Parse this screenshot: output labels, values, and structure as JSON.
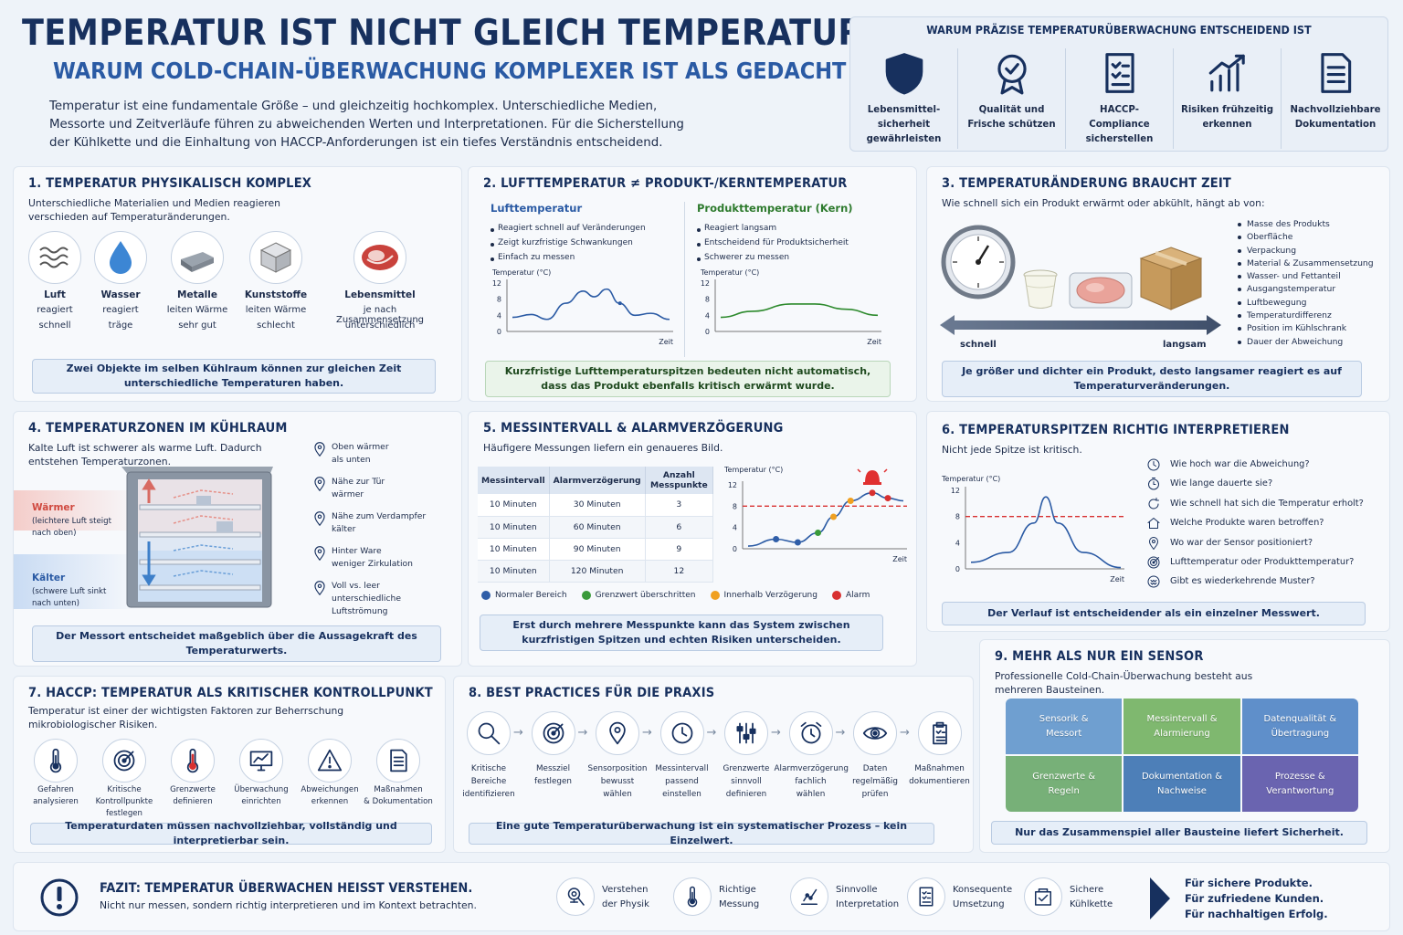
{
  "header": {
    "title": "TEMPERATUR IST NICHT GLEICH TEMPERATUR:",
    "subtitle": "WARUM COLD-CHAIN-ÜBERWACHUNG KOMPLEXER IST ALS GEDACHT",
    "intro": "Temperatur ist eine fundamentale Größe – und gleichzeitig hochkomplex. Unterschiedliche Medien, Messorte und Zeitverläufe führen zu abweichenden Werten und Interpretationen. Für die Sicherstellung der Kühlkette und die Einhaltung von HACCP-Anforderungen ist ein tiefes Verständnis entscheidend."
  },
  "why": {
    "title": "WARUM PRÄZISE TEMPERATURÜBERWACHUNG ENTSCHEIDEND IST",
    "items": [
      {
        "icon": "shield-icon",
        "label": "Lebensmittel-sicherheit gewährleisten"
      },
      {
        "icon": "award-badge-icon",
        "label": "Qualität und Frische schützen"
      },
      {
        "icon": "checklist-icon",
        "label": "HACCP-Compliance sicherstellen"
      },
      {
        "icon": "trend-up-icon",
        "label": "Risiken frühzeitig erkennen"
      },
      {
        "icon": "document-icon",
        "label": "Nachvollziehbare Dokumentation"
      }
    ]
  },
  "s1": {
    "title": "1. TEMPERATUR PHYSIKALISCH KOMPLEX",
    "desc": "Unterschiedliche Materialien und Medien reagieren verschieden auf Temperaturänderungen.",
    "items": [
      {
        "name": "Luft",
        "l1": "reagiert",
        "l2": "schnell"
      },
      {
        "name": "Wasser",
        "l1": "reagiert",
        "l2": "träge"
      },
      {
        "name": "Metalle",
        "l1": "leiten Wärme",
        "l2": "sehr gut"
      },
      {
        "name": "Kunststoffe",
        "l1": "leiten Wärme",
        "l2": "schlecht"
      },
      {
        "name": "Lebensmittel",
        "l1": "je nach Zusammensetzung",
        "l2": "unterschiedlich"
      }
    ],
    "note": "Zwei Objekte im selben Kühlraum können zur gleichen Zeit unterschiedliche Temperaturen haben."
  },
  "s2": {
    "title": "2. LUFTTEMPERATUR ≠ PRODUKT-/KERNTEMPERATUR",
    "air": {
      "title": "Lufttemperatur",
      "bullets": [
        "Reagiert schnell auf Veränderungen",
        "Zeigt kurzfristige Schwankungen",
        "Einfach zu messen"
      ],
      "ylabel": "Temperatur (°C)",
      "xlabel": "Zeit",
      "ticks": [
        "12",
        "8",
        "4",
        "0"
      ]
    },
    "core": {
      "title": "Produkttemperatur (Kern)",
      "bullets": [
        "Reagiert langsam",
        "Entscheidend für Produktsicherheit",
        "Schwerer zu messen"
      ],
      "ylabel": "Temperatur (°C)",
      "xlabel": "Zeit",
      "ticks": [
        "12",
        "8",
        "4",
        "0"
      ]
    },
    "note": "Kurzfristige Lufttemperaturspitzen bedeuten nicht automatisch, dass das Produkt ebenfalls kritisch erwärmt wurde."
  },
  "s3": {
    "title": "3. TEMPERATURÄNDERUNG BRAUCHT ZEIT",
    "desc": "Wie schnell sich ein Produkt erwärmt oder abkühlt, hängt ab von:",
    "fast": "schnell",
    "slow": "langsam",
    "factors": [
      "Masse des Produkts",
      "Oberfläche",
      "Verpackung",
      "Material & Zusammensetzung",
      "Wasser- und Fettanteil",
      "Ausgangstemperatur",
      "Luftbewegung",
      "Temperaturdifferenz",
      "Position im Kühlschrank",
      "Dauer der Abweichung"
    ],
    "note": "Je größer und dichter ein Produkt, desto langsamer reagiert es auf Temperaturveränderungen."
  },
  "s4": {
    "title": "4. TEMPERATURZONEN IM KÜHLRAUM",
    "desc": "Kalte Luft ist schwerer als warme Luft. Dadurch entstehen Temperaturzonen.",
    "warm": "Wärmer",
    "warm_sub": "(leichtere Luft steigt nach oben)",
    "cold": "Kälter",
    "cold_sub": "(schwere Luft sinkt nach unten)",
    "zones": [
      [
        "Oben wärmer",
        "als unten"
      ],
      [
        "Nähe zur Tür",
        "wärmer"
      ],
      [
        "Nähe zum Verdampfer",
        "kälter"
      ],
      [
        "Hinter Ware",
        "weniger Zirkulation"
      ],
      [
        "Voll vs. leer",
        "unterschiedliche",
        "Luftströmung"
      ]
    ],
    "note": "Der Messort entscheidet maßgeblich über die Aussagekraft des Temperaturwerts."
  },
  "s5": {
    "title": "5. MESSINTERVALL & ALARMVERZÖGERUNG",
    "desc": "Häufigere Messungen liefern ein genaueres Bild.",
    "headers": [
      "Messintervall",
      "Alarmverzögerung",
      "Anzahl Messpunkte"
    ],
    "rows": [
      [
        "10 Minuten",
        "30 Minuten",
        "3"
      ],
      [
        "10 Minuten",
        "60 Minuten",
        "6"
      ],
      [
        "10 Minuten",
        "90 Minuten",
        "9"
      ],
      [
        "10 Minuten",
        "120 Minuten",
        "12"
      ]
    ],
    "chart": {
      "ylabel": "Temperatur (°C)",
      "xlabel": "Zeit",
      "ticks": [
        "12",
        "8",
        "4",
        "0"
      ]
    },
    "legend": [
      "Normaler Bereich",
      "Grenzwert überschritten",
      "Innerhalb Verzögerung",
      "Alarm"
    ],
    "legend_colors": [
      "#2f5ea8",
      "#3a9a3a",
      "#f0a020",
      "#d83030"
    ],
    "note": "Erst durch mehrere Messpunkte kann das System zwischen kurzfristigen Spitzen und echten Risiken unterscheiden."
  },
  "s6": {
    "title": "6.  TEMPERATURSPITZEN RICHTIG INTERPRETIEREN",
    "desc": "Nicht jede Spitze ist kritisch.",
    "chart": {
      "ylabel": "Temperatur (°C)",
      "xlabel": "Zeit",
      "ticks": [
        "12",
        "8",
        "4",
        "0"
      ]
    },
    "questions": [
      {
        "icon": "clock-icon",
        "text": "Wie hoch war die Abweichung?"
      },
      {
        "icon": "timer-icon",
        "text": "Wie lange dauerte sie?"
      },
      {
        "icon": "refresh-icon",
        "text": "Wie schnell hat sich die Temperatur erholt?"
      },
      {
        "icon": "house-icon",
        "text": "Welche Produkte waren betroffen?"
      },
      {
        "icon": "pin-icon",
        "text": "Wo war der Sensor positioniert?"
      },
      {
        "icon": "target-icon",
        "text": "Lufttemperatur oder Produkttemperatur?"
      },
      {
        "icon": "pattern-icon",
        "text": "Gibt es wiederkehrende Muster?"
      }
    ],
    "note": "Der Verlauf ist entscheidender als ein einzelner Messwert."
  },
  "s7": {
    "title": "7. HACCP:  TEMPERATUR ALS KRITISCHER KONTROLLPUNKT",
    "desc": "Temperatur ist einer der wichtigsten Faktoren zur Beherrschung mikrobiologischer Risiken.",
    "steps": [
      {
        "icon": "thermometer-icon",
        "l": [
          "Gefahren",
          "analysieren"
        ]
      },
      {
        "icon": "target-icon",
        "l": [
          "Kritische",
          "Kontrollpunkte",
          "festlegen"
        ]
      },
      {
        "icon": "thermometer-red-icon",
        "l": [
          "Grenzwerte",
          "definieren"
        ]
      },
      {
        "icon": "monitor-chart-icon",
        "l": [
          "Überwachung",
          "einrichten"
        ]
      },
      {
        "icon": "warning-icon",
        "l": [
          "Abweichungen",
          "erkennen"
        ]
      },
      {
        "icon": "document-icon",
        "l": [
          "Maßnahmen",
          "& Dokumentation"
        ]
      }
    ],
    "note": "Temperaturdaten müssen nachvollziehbar, vollständig und interpretierbar sein."
  },
  "s8": {
    "title": "8. BEST PRACTICES FÜR DIE PRAXIS",
    "steps": [
      {
        "icon": "magnifier-icon",
        "l": [
          "Kritische",
          "Bereiche",
          "identifizieren"
        ]
      },
      {
        "icon": "target-icon",
        "l": [
          "Messziel",
          "festlegen"
        ]
      },
      {
        "icon": "pin-icon",
        "l": [
          "Sensorposition",
          "bewusst",
          "wählen"
        ]
      },
      {
        "icon": "clock-icon",
        "l": [
          "Messintervall",
          "passend",
          "einstellen"
        ]
      },
      {
        "icon": "sliders-icon",
        "l": [
          "Grenzwerte",
          "sinnvoll",
          "definieren"
        ]
      },
      {
        "icon": "alarm-clock-icon",
        "l": [
          "Alarmverzögerung",
          "fachlich",
          "wählen"
        ]
      },
      {
        "icon": "eye-icon",
        "l": [
          "Daten",
          "regelmäßig",
          "prüfen"
        ]
      },
      {
        "icon": "clipboard-icon",
        "l": [
          "Maßnahmen",
          "dokumentieren"
        ]
      }
    ],
    "note": "Eine gute Temperaturüberwachung ist ein systematischer Prozess – kein Einzelwert."
  },
  "s9": {
    "title": "9. MEHR ALS NUR EIN SENSOR",
    "desc": "Professionelle Cold-Chain-Überwachung besteht aus mehreren Bausteinen.",
    "pieces": [
      {
        "l": [
          "Sensorik &",
          "Messort"
        ],
        "color": "#6f9fd0"
      },
      {
        "l": [
          "Messintervall &",
          "Alarmierung"
        ],
        "color": "#7fb86f"
      },
      {
        "l": [
          "Datenqualität &",
          "Übertragung"
        ],
        "color": "#5f8fca"
      },
      {
        "l": [
          "Grenzwerte &",
          "Regeln"
        ],
        "color": "#77b078"
      },
      {
        "l": [
          "Dokumentation &",
          "Nachweise"
        ],
        "color": "#4d7fb8"
      },
      {
        "l": [
          "Prozesse &",
          "Verantwortung"
        ],
        "color": "#6a64b0"
      }
    ],
    "note": "Nur das Zusammenspiel aller Bausteine liefert Sicherheit."
  },
  "fazit": {
    "title": "FAZIT:  TEMPERATUR ÜBERWACHEN HEISST VERSTEHEN.",
    "sub": "Nicht nur messen, sondern richtig interpretieren und im Kontext betrachten.",
    "items": [
      {
        "icon": "physics-icon",
        "l": [
          "Verstehen",
          "der Physik"
        ]
      },
      {
        "icon": "thermometer-icon",
        "l": [
          "Richtige",
          "Messung"
        ]
      },
      {
        "icon": "analysis-icon",
        "l": [
          "Sinnvolle",
          "Interpretation"
        ]
      },
      {
        "icon": "checklist-icon",
        "l": [
          "Konsequente",
          "Umsetzung"
        ]
      },
      {
        "icon": "safe-chain-icon",
        "l": [
          "Sichere",
          "Kühlkette"
        ]
      }
    ],
    "outcomes": [
      "Für sichere Produkte.",
      "Für zufriedene Kunden.",
      "Für nachhaltigen Erfolg."
    ]
  }
}
